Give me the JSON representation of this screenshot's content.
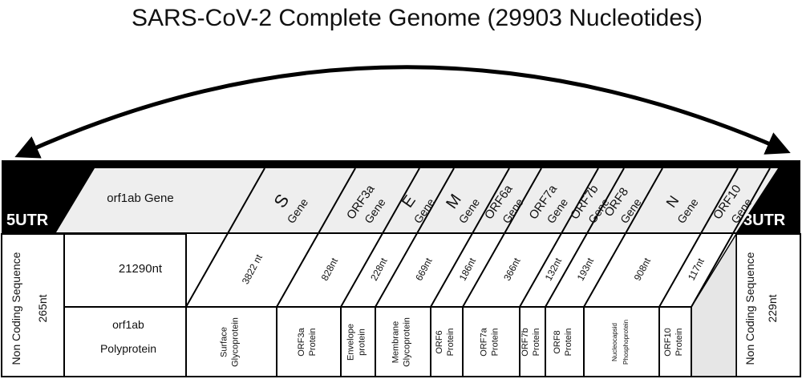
{
  "title": "SARS-CoV-2 Complete Genome (29903 Nucleotides)",
  "utr5": {
    "label": "5UTR",
    "description": "Non Coding Sequence",
    "length": "265nt"
  },
  "utr3": {
    "label": "3UTR",
    "description": "Non Coding Sequence",
    "length": "229nt"
  },
  "orf1ab": {
    "gene": "orf1ab Gene",
    "length": "21290nt",
    "protein_line1": "orf1ab",
    "protein_line2": "Polyprotein"
  },
  "genes": [
    {
      "id": "s",
      "gene_line1": "S",
      "gene_line2": "Gene",
      "length": "3822 nt",
      "protein_line1": "Surface",
      "protein_line2": "Glycoprotein"
    },
    {
      "id": "orf3a",
      "gene_line1": "ORF3a",
      "gene_line2": "Gene",
      "length": "828nt",
      "protein_line1": "ORF3a",
      "protein_line2": "Protein"
    },
    {
      "id": "e",
      "gene_line1": "E",
      "gene_line2": "Gene",
      "length": "228nt",
      "protein_line1": "Envelope",
      "protein_line2": "protein"
    },
    {
      "id": "m",
      "gene_line1": "M",
      "gene_line2": "Gene",
      "length": "669nt",
      "protein_line1": "Membrane",
      "protein_line2": "Glycoprotein"
    },
    {
      "id": "orf6a",
      "gene_line1": "ORF6a",
      "gene_line2": "Gene",
      "length": "186nt",
      "protein_line1": "ORF6",
      "protein_line2": "Protein"
    },
    {
      "id": "orf7a",
      "gene_line1": "ORF7a",
      "gene_line2": "Gene",
      "length": "366nt",
      "protein_line1": "ORF7a",
      "protein_line2": "Protein"
    },
    {
      "id": "orf7b",
      "gene_line1": "ORF7b",
      "gene_line2": "Gene",
      "length": "132nt",
      "protein_line1": "ORF7b",
      "protein_line2": "Protein"
    },
    {
      "id": "orf8",
      "gene_line1": "ORF8",
      "gene_line2": "Gene",
      "length": "193nt",
      "protein_line1": "ORF8",
      "protein_line2": "Protein"
    },
    {
      "id": "n",
      "gene_line1": "N",
      "gene_line2": "Gene",
      "length": "908nt",
      "protein_line1": "Nucleocapsid",
      "protein_line2": "Phosphoprotein"
    },
    {
      "id": "orf10",
      "gene_line1": "ORF10",
      "gene_line2": "Gene",
      "length": "117nt",
      "protein_line1": "ORF10",
      "protein_line2": "Protein"
    }
  ]
}
